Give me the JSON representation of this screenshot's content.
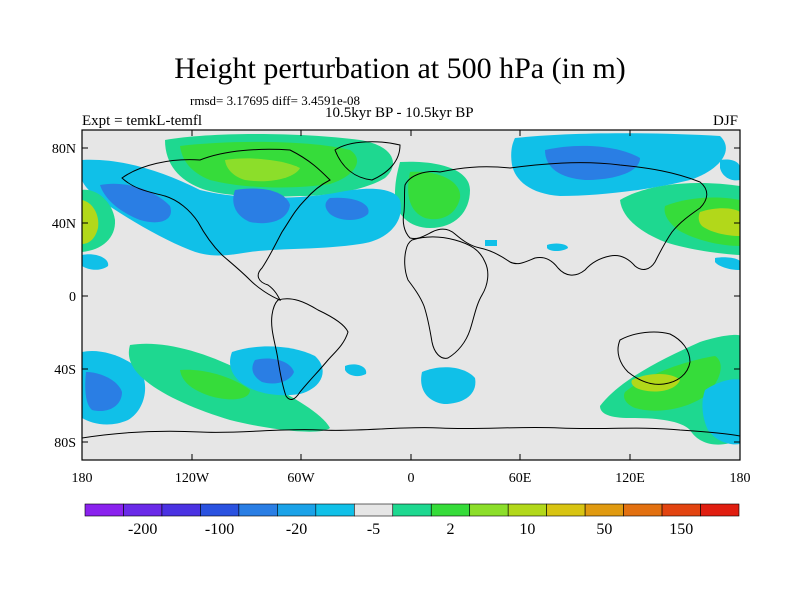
{
  "title": "Height perturbation at 500 hPa (in m)",
  "stats_line": "rmsd= 3.17695 diff= 3.4591e-08",
  "period": "10.5kyr BP - 10.5kyr BP",
  "experiment": "Expt = temkL-temfl",
  "season": "DJF",
  "lat_ticks": [
    "80N",
    "40N",
    "0",
    "40S",
    "80S"
  ],
  "lon_ticks": [
    "180",
    "120W",
    "60W",
    "0",
    "60E",
    "120E",
    "180"
  ],
  "colorbar": {
    "labels": [
      "-200",
      "-100",
      "-20",
      "-5",
      "2",
      "10",
      "50",
      "150"
    ],
    "colors": [
      "#8a22ee",
      "#6a2ae8",
      "#4a32e2",
      "#2a52e0",
      "#2a7ee4",
      "#1aa2e8",
      "#10c0e8",
      "#e6e6e6",
      "#1ed890",
      "#36dc3a",
      "#8cde2a",
      "#b2d81a",
      "#d8c412",
      "#e09a10",
      "#e27010",
      "#e24410",
      "#e01e10"
    ]
  },
  "colors": {
    "neutral": "#e6e6e6",
    "cyan": "#10c0e8",
    "blue": "#2a7ee4",
    "teal": "#1ed890",
    "green": "#36dc3a",
    "lime": "#8cde2a",
    "yellow": "#b2d81a",
    "coast": "#000000"
  }
}
